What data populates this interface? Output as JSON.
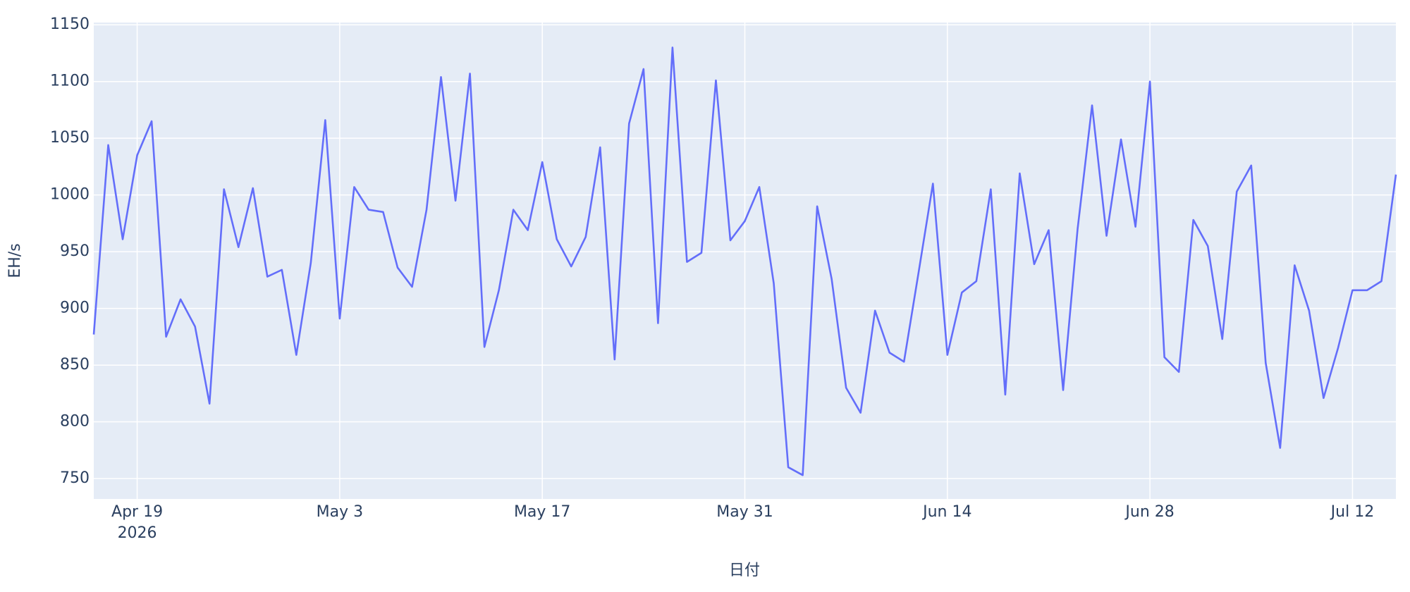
{
  "chart_data": {
    "type": "line",
    "x_label": "日付",
    "y_label": "EH/s",
    "x": [
      "2026-04-16",
      "2026-04-17",
      "2026-04-18",
      "2026-04-19",
      "2026-04-20",
      "2026-04-21",
      "2026-04-22",
      "2026-04-23",
      "2026-04-24",
      "2026-04-25",
      "2026-04-26",
      "2026-04-27",
      "2026-04-28",
      "2026-04-29",
      "2026-04-30",
      "2026-05-01",
      "2026-05-02",
      "2026-05-03",
      "2026-05-04",
      "2026-05-05",
      "2026-05-06",
      "2026-05-07",
      "2026-05-08",
      "2026-05-09",
      "2026-05-10",
      "2026-05-11",
      "2026-05-12",
      "2026-05-13",
      "2026-05-14",
      "2026-05-15",
      "2026-05-16",
      "2026-05-17",
      "2026-05-18",
      "2026-05-19",
      "2026-05-20",
      "2026-05-21",
      "2026-05-22",
      "2026-05-23",
      "2026-05-24",
      "2026-05-25",
      "2026-05-26",
      "2026-05-27",
      "2026-05-28",
      "2026-05-29",
      "2026-05-30",
      "2026-05-31",
      "2026-06-01",
      "2026-06-02",
      "2026-06-03",
      "2026-06-04",
      "2026-06-05",
      "2026-06-06",
      "2026-06-07",
      "2026-06-08",
      "2026-06-09",
      "2026-06-10",
      "2026-06-11",
      "2026-06-12",
      "2026-06-13",
      "2026-06-14",
      "2026-06-15",
      "2026-06-16",
      "2026-06-17",
      "2026-06-18",
      "2026-06-19",
      "2026-06-20",
      "2026-06-21",
      "2026-06-22",
      "2026-06-23",
      "2026-06-24",
      "2026-06-25",
      "2026-06-26",
      "2026-06-27",
      "2026-06-28",
      "2026-06-29",
      "2026-06-30",
      "2026-07-01",
      "2026-07-02",
      "2026-07-03",
      "2026-07-04",
      "2026-07-05",
      "2026-07-06",
      "2026-07-07",
      "2026-07-08",
      "2026-07-09",
      "2026-07-10",
      "2026-07-11",
      "2026-07-12",
      "2026-07-13",
      "2026-07-14",
      "2026-07-15"
    ],
    "series": [
      {
        "color": "#636efa",
        "values": [
          877,
          1044,
          961,
          1035,
          1065,
          875,
          908,
          884,
          816,
          1005,
          954,
          1006,
          928,
          934,
          859,
          940,
          1066,
          891,
          1007,
          987,
          985,
          936,
          919,
          987,
          1104,
          995,
          1107,
          866,
          916,
          987,
          969,
          1029,
          961,
          937,
          963,
          1042,
          855,
          1063,
          1111,
          887,
          1130,
          941,
          949,
          1101,
          960,
          977,
          1007,
          922,
          760,
          753,
          990,
          926,
          830,
          808,
          898,
          861,
          853,
          931,
          1010,
          859,
          914,
          924,
          1005,
          824,
          1019,
          939,
          969,
          828,
          970,
          1079,
          964,
          1049,
          972,
          1100,
          857,
          844,
          978,
          955,
          873,
          1003,
          1026,
          852,
          777,
          938,
          898,
          821,
          865,
          916,
          916,
          924,
          1018
        ]
      }
    ],
    "xlim": [
      "2026-04-16",
      "2026-07-15"
    ],
    "xticks": [
      {
        "value": "2026-04-19",
        "label": "Apr 19",
        "year": "2026"
      },
      {
        "value": "2026-05-03",
        "label": "May 3"
      },
      {
        "value": "2026-05-17",
        "label": "May 17"
      },
      {
        "value": "2026-05-31",
        "label": "May 31"
      },
      {
        "value": "2026-06-14",
        "label": "Jun 14"
      },
      {
        "value": "2026-06-28",
        "label": "Jun 28"
      },
      {
        "value": "2026-07-12",
        "label": "Jul 12"
      }
    ],
    "ylim": [
      732,
      1152
    ],
    "yticks": [
      750,
      800,
      850,
      900,
      950,
      1000,
      1050,
      1100,
      1150
    ],
    "grid": true
  }
}
